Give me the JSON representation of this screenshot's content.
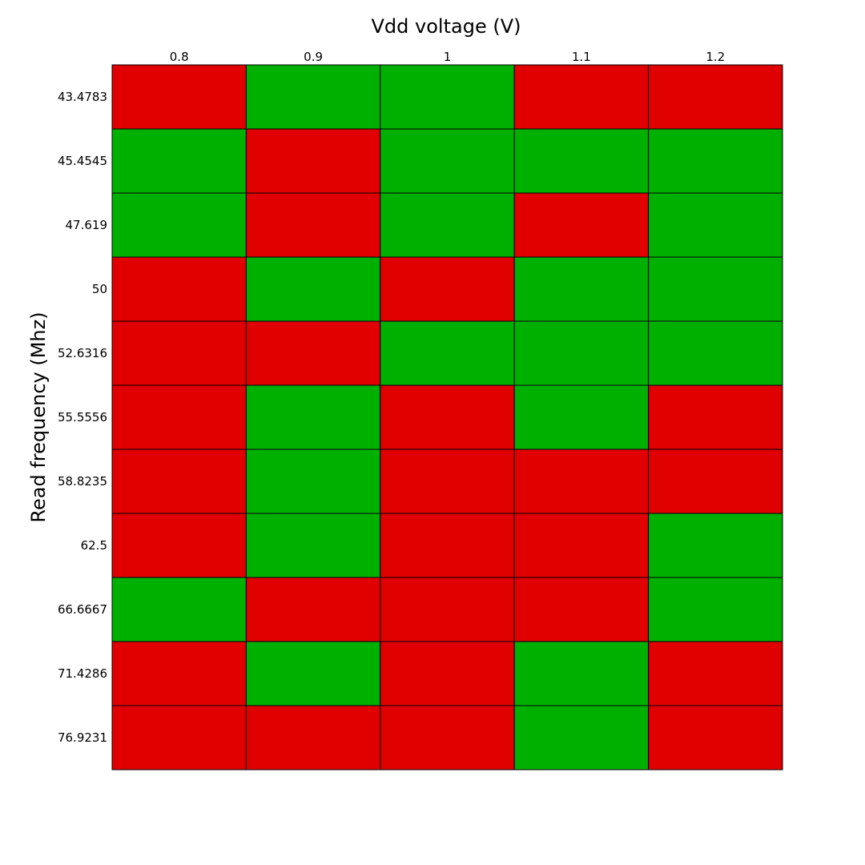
{
  "chart_data": {
    "type": "heatmap",
    "xlabel": "Vdd voltage (V)",
    "ylabel": "Read frequency (Mhz)",
    "x_ticks": [
      "0.8",
      "0.9",
      "1",
      "1.1",
      "1.2"
    ],
    "y_ticks": [
      "43.4783",
      "45.4545",
      "47.619",
      "50",
      "52.6316",
      "55.5556",
      "58.8235",
      "62.5",
      "66.6667",
      "71.4286",
      "76.9231"
    ],
    "x_axis_position": "top",
    "grid": true,
    "color_map": {
      "pass": "#00b000",
      "fail": "#e00000"
    },
    "cells": [
      [
        "fail",
        "pass",
        "pass",
        "fail",
        "fail"
      ],
      [
        "pass",
        "fail",
        "pass",
        "pass",
        "pass"
      ],
      [
        "pass",
        "fail",
        "pass",
        "fail",
        "pass"
      ],
      [
        "fail",
        "pass",
        "fail",
        "pass",
        "pass"
      ],
      [
        "fail",
        "fail",
        "pass",
        "pass",
        "pass"
      ],
      [
        "fail",
        "pass",
        "fail",
        "pass",
        "fail"
      ],
      [
        "fail",
        "pass",
        "fail",
        "fail",
        "fail"
      ],
      [
        "fail",
        "pass",
        "fail",
        "fail",
        "pass"
      ],
      [
        "pass",
        "fail",
        "fail",
        "fail",
        "pass"
      ],
      [
        "fail",
        "pass",
        "fail",
        "pass",
        "fail"
      ],
      [
        "fail",
        "fail",
        "fail",
        "pass",
        "fail"
      ]
    ]
  }
}
